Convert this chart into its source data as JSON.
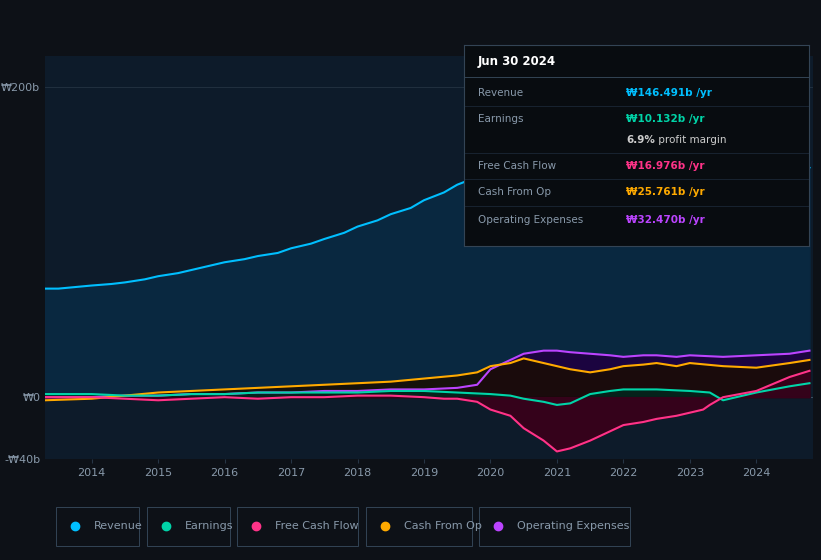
{
  "bg_color": "#0d1117",
  "plot_bg_color": "#0d1b2a",
  "grid_color": "#263545",
  "text_color": "#8899aa",
  "title_color": "#ffffff",
  "ylim": [
    -40,
    220
  ],
  "xlim": [
    2013.3,
    2024.85
  ],
  "xtick_years": [
    2014,
    2015,
    2016,
    2017,
    2018,
    2019,
    2020,
    2021,
    2022,
    2023,
    2024
  ],
  "series": {
    "revenue": {
      "color": "#00bfff",
      "fill_color": "#092840",
      "label": "Revenue",
      "values_x": [
        2013.3,
        2013.5,
        2014.0,
        2014.3,
        2014.5,
        2014.8,
        2015.0,
        2015.3,
        2015.5,
        2015.8,
        2016.0,
        2016.3,
        2016.5,
        2016.8,
        2017.0,
        2017.3,
        2017.5,
        2017.8,
        2018.0,
        2018.3,
        2018.5,
        2018.8,
        2019.0,
        2019.3,
        2019.5,
        2019.8,
        2020.0,
        2020.1,
        2020.3,
        2020.5,
        2020.7,
        2020.8,
        2021.0,
        2021.1,
        2021.2,
        2021.3,
        2021.5,
        2021.8,
        2022.0,
        2022.3,
        2022.5,
        2022.8,
        2023.0,
        2023.1,
        2023.3,
        2023.5,
        2023.8,
        2024.0,
        2024.2,
        2024.5,
        2024.8
      ],
      "values_y": [
        70,
        70,
        72,
        73,
        74,
        76,
        78,
        80,
        82,
        85,
        87,
        89,
        91,
        93,
        96,
        99,
        102,
        106,
        110,
        114,
        118,
        122,
        127,
        132,
        137,
        142,
        148,
        153,
        158,
        162,
        165,
        162,
        168,
        175,
        180,
        185,
        183,
        180,
        182,
        184,
        186,
        188,
        190,
        192,
        195,
        200,
        205,
        198,
        190,
        165,
        148
      ]
    },
    "earnings": {
      "color": "#00d4a8",
      "fill_color": "#002820",
      "label": "Earnings",
      "values_x": [
        2013.3,
        2014.0,
        2014.5,
        2015.0,
        2015.5,
        2016.0,
        2016.5,
        2017.0,
        2017.5,
        2018.0,
        2018.5,
        2019.0,
        2019.5,
        2020.0,
        2020.3,
        2020.5,
        2020.8,
        2021.0,
        2021.2,
        2021.5,
        2021.8,
        2022.0,
        2022.5,
        2023.0,
        2023.3,
        2023.5,
        2024.0,
        2024.5,
        2024.8
      ],
      "values_y": [
        2,
        2,
        1,
        1,
        2,
        2,
        3,
        3,
        3,
        3,
        4,
        4,
        3,
        2,
        1,
        -1,
        -3,
        -5,
        -4,
        2,
        4,
        5,
        5,
        4,
        3,
        -2,
        3,
        7,
        9
      ]
    },
    "free_cash_flow": {
      "color": "#ff3388",
      "fill_color": "#3a001a",
      "label": "Free Cash Flow",
      "values_x": [
        2013.3,
        2014.0,
        2014.5,
        2015.0,
        2015.5,
        2016.0,
        2016.5,
        2017.0,
        2017.5,
        2018.0,
        2018.5,
        2019.0,
        2019.3,
        2019.5,
        2019.8,
        2020.0,
        2020.3,
        2020.5,
        2020.8,
        2021.0,
        2021.2,
        2021.5,
        2021.8,
        2022.0,
        2022.3,
        2022.5,
        2022.8,
        2023.0,
        2023.2,
        2023.3,
        2023.5,
        2024.0,
        2024.5,
        2024.8
      ],
      "values_y": [
        0,
        0,
        -1,
        -2,
        -1,
        0,
        -1,
        0,
        0,
        1,
        1,
        0,
        -1,
        -1,
        -3,
        -8,
        -12,
        -20,
        -28,
        -35,
        -33,
        -28,
        -22,
        -18,
        -16,
        -14,
        -12,
        -10,
        -8,
        -5,
        0,
        4,
        13,
        17
      ]
    },
    "cash_from_op": {
      "color": "#ffaa00",
      "fill_color": "#1a0d00",
      "label": "Cash From Op",
      "values_x": [
        2013.3,
        2014.0,
        2014.5,
        2015.0,
        2015.5,
        2016.0,
        2016.5,
        2017.0,
        2017.5,
        2018.0,
        2018.5,
        2019.0,
        2019.5,
        2019.8,
        2020.0,
        2020.3,
        2020.5,
        2020.8,
        2021.0,
        2021.2,
        2021.5,
        2021.8,
        2022.0,
        2022.3,
        2022.5,
        2022.8,
        2023.0,
        2023.5,
        2024.0,
        2024.5,
        2024.8
      ],
      "values_y": [
        -2,
        -1,
        1,
        3,
        4,
        5,
        6,
        7,
        8,
        9,
        10,
        12,
        14,
        16,
        20,
        22,
        25,
        22,
        20,
        18,
        16,
        18,
        20,
        21,
        22,
        20,
        22,
        20,
        19,
        22,
        24
      ]
    },
    "operating_expenses": {
      "color": "#bb44ff",
      "fill_color": "#1e0040",
      "label": "Operating Expenses",
      "values_x": [
        2013.3,
        2014.0,
        2014.5,
        2015.0,
        2015.5,
        2016.0,
        2016.5,
        2017.0,
        2017.5,
        2018.0,
        2018.5,
        2019.0,
        2019.5,
        2019.8,
        2020.0,
        2020.3,
        2020.5,
        2020.8,
        2021.0,
        2021.2,
        2021.5,
        2021.8,
        2022.0,
        2022.3,
        2022.5,
        2022.8,
        2023.0,
        2023.5,
        2024.0,
        2024.5,
        2024.8
      ],
      "values_y": [
        0,
        0,
        1,
        1,
        2,
        2,
        3,
        3,
        4,
        4,
        5,
        5,
        6,
        8,
        18,
        24,
        28,
        30,
        30,
        29,
        28,
        27,
        26,
        27,
        27,
        26,
        27,
        26,
        27,
        28,
        30
      ]
    }
  },
  "info_box": {
    "title": "Jun 30 2024",
    "rows": [
      {
        "label": "Revenue",
        "value": "₩146.491b /yr",
        "value_color": "#00bfff"
      },
      {
        "label": "Earnings",
        "value": "₩10.132b /yr",
        "value_color": "#00d4a8"
      },
      {
        "label": "",
        "value": "6.9% profit margin",
        "value_color": "#cccccc",
        "bold_part": "6.9%"
      },
      {
        "label": "Free Cash Flow",
        "value": "₩16.976b /yr",
        "value_color": "#ff3388"
      },
      {
        "label": "Cash From Op",
        "value": "₩25.761b /yr",
        "value_color": "#ffaa00"
      },
      {
        "label": "Operating Expenses",
        "value": "₩32.470b /yr",
        "value_color": "#bb44ff"
      }
    ]
  },
  "legend": [
    {
      "label": "Revenue",
      "color": "#00bfff"
    },
    {
      "label": "Earnings",
      "color": "#00d4a8"
    },
    {
      "label": "Free Cash Flow",
      "color": "#ff3388"
    },
    {
      "label": "Cash From Op",
      "color": "#ffaa00"
    },
    {
      "label": "Operating Expenses",
      "color": "#bb44ff"
    }
  ]
}
